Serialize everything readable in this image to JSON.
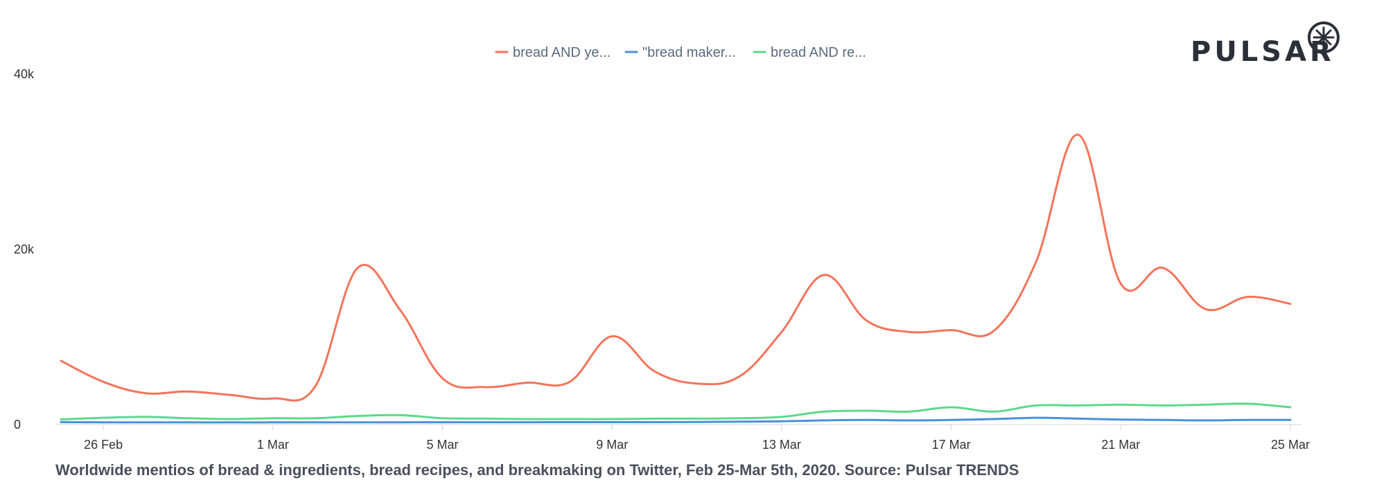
{
  "logo": {
    "text": "PULSAR"
  },
  "caption": "Worldwide mentios of bread & ingredients, bread recipes, and breakmaking on Twitter, Feb 25-Mar 5th, 2020. Source: Pulsar TRENDS",
  "chart_data": {
    "type": "line",
    "x": [
      "25 Feb",
      "26 Feb",
      "27 Feb",
      "28 Feb",
      "29 Feb",
      "1 Mar",
      "2 Mar",
      "3 Mar",
      "4 Mar",
      "5 Mar",
      "6 Mar",
      "7 Mar",
      "8 Mar",
      "9 Mar",
      "10 Mar",
      "11 Mar",
      "12 Mar",
      "13 Mar",
      "14 Mar",
      "15 Mar",
      "16 Mar",
      "17 Mar",
      "18 Mar",
      "19 Mar",
      "20 Mar",
      "21 Mar",
      "22 Mar",
      "23 Mar",
      "24 Mar",
      "25 Mar"
    ],
    "x_tick_labels": [
      "26 Feb",
      "1 Mar",
      "5 Mar",
      "9 Mar",
      "13 Mar",
      "17 Mar",
      "21 Mar",
      "25 Mar"
    ],
    "y_tick_labels": [
      "0",
      "20k",
      "40k"
    ],
    "ylim": [
      0,
      40000
    ],
    "grid": false,
    "legend_position": "top-center",
    "series": [
      {
        "name": "bread AND ye...",
        "color": "#f4735a",
        "values": [
          7200,
          4800,
          3500,
          3700,
          3300,
          2900,
          4300,
          17800,
          13000,
          5200,
          4200,
          4700,
          4800,
          10000,
          6000,
          4600,
          5400,
          10500,
          17000,
          11800,
          10500,
          10700,
          10600,
          18500,
          33000,
          16000,
          17800,
          13100,
          14500,
          13700
        ]
      },
      {
        "name": "\"bread maker...",
        "color": "#4a90d9",
        "values": [
          200,
          180,
          180,
          170,
          170,
          170,
          180,
          180,
          180,
          190,
          190,
          190,
          200,
          200,
          200,
          220,
          250,
          300,
          400,
          450,
          400,
          450,
          550,
          700,
          600,
          500,
          450,
          400,
          450,
          450
        ]
      },
      {
        "name": "bread AND re...",
        "color": "#5dd88c",
        "values": [
          500,
          700,
          800,
          650,
          550,
          650,
          650,
          900,
          1000,
          650,
          600,
          550,
          550,
          550,
          600,
          600,
          650,
          800,
          1400,
          1500,
          1400,
          1900,
          1400,
          2100,
          2100,
          2200,
          2100,
          2200,
          2300,
          1900
        ]
      }
    ]
  }
}
